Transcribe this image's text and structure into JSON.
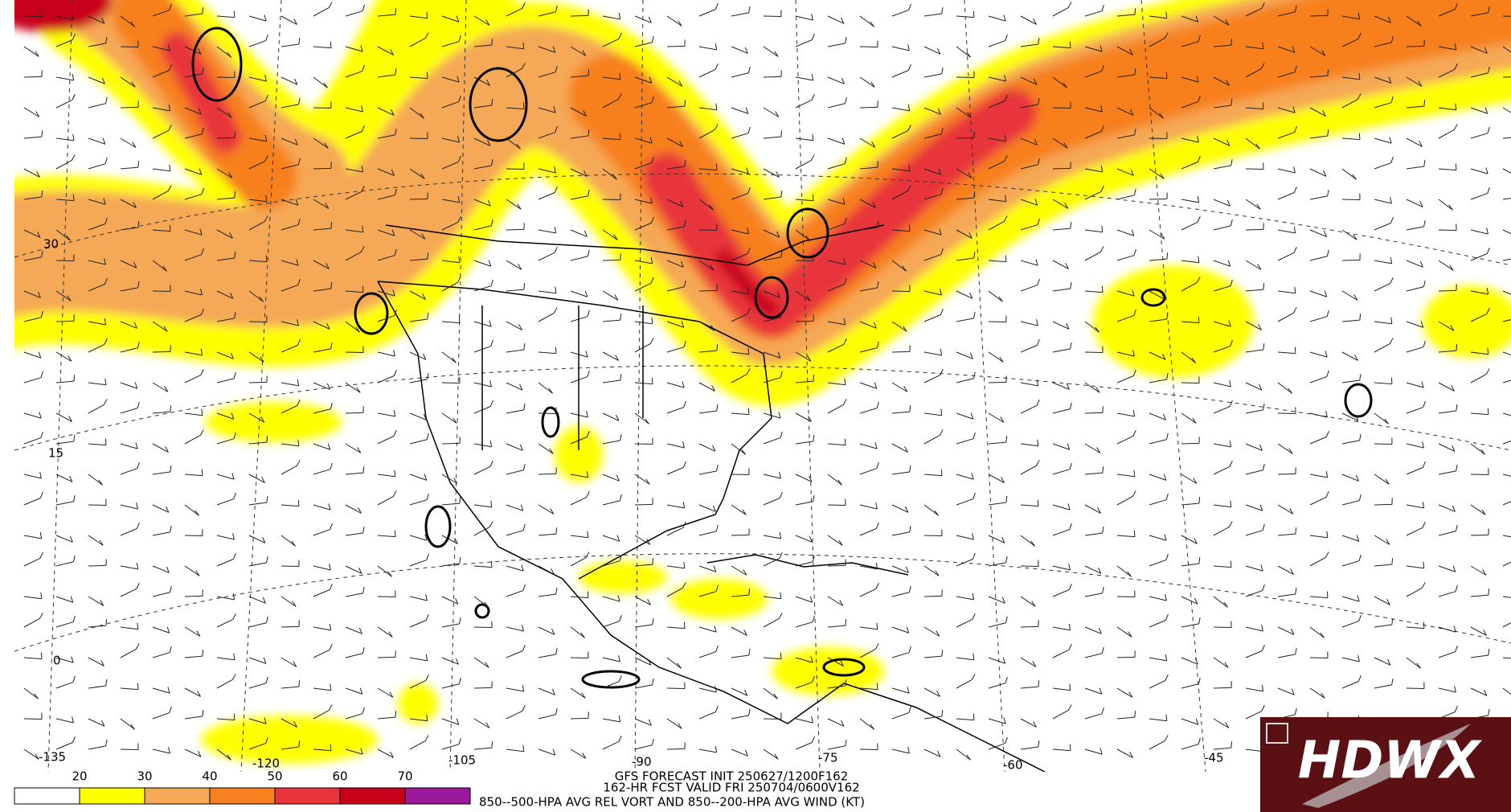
{
  "map": {
    "lat_labels": [
      30,
      15,
      0
    ],
    "lon_labels": [
      -135,
      -120,
      -105,
      -90,
      -75,
      -60,
      -45
    ],
    "title_lines": [
      "GFS FORECAST INIT 250627/1200F162",
      "162-HR FCST VALID FRI 250704/0600V162",
      "850--500-HPA AVG REL VORT AND 850--200-HPA AVG WIND (KT)"
    ],
    "colorbar": {
      "ticks": [
        20,
        30,
        40,
        50,
        60,
        70
      ],
      "colors": [
        "#ffffff",
        "#ffff00",
        "#f5a855",
        "#f7801f",
        "#e8343a",
        "#c8001a",
        "#9b1a9b"
      ]
    },
    "logo": {
      "text": "HDWX"
    }
  }
}
